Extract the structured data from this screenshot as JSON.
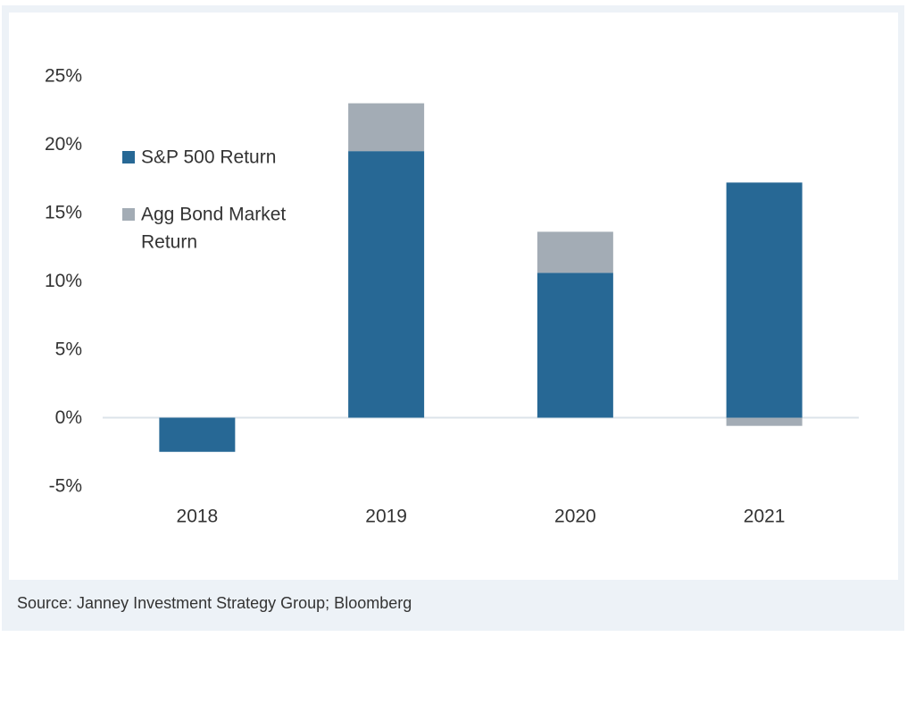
{
  "chart_data": {
    "type": "bar",
    "stacked": true,
    "title": "",
    "xlabel": "",
    "ylabel": "",
    "categories": [
      "2018",
      "2019",
      "2020",
      "2021"
    ],
    "series": [
      {
        "name": "S&P 500 Return",
        "color": "#276895",
        "values": [
          -2.5,
          19.5,
          10.6,
          17.2
        ]
      },
      {
        "name": "Agg Bond Market Return",
        "color": "#a3acb5",
        "values": [
          0.0,
          3.5,
          3.0,
          -0.6
        ]
      }
    ],
    "ylim": [
      -5,
      25
    ],
    "yticks": [
      -5,
      0,
      5,
      10,
      15,
      20,
      25
    ],
    "ytick_labels": [
      "-5%",
      "0%",
      "5%",
      "10%",
      "15%",
      "20%",
      "25%"
    ],
    "legend": {
      "placement": "top-left, inside plot",
      "entries": [
        {
          "lines": [
            "S&P 500 Return"
          ],
          "color": "#276895"
        },
        {
          "lines": [
            "Agg Bond Market",
            "Return"
          ],
          "color": "#a3acb5"
        }
      ]
    },
    "grid": false,
    "zero_line_color": "#dce3ea"
  },
  "source": "Source: Janney Investment Strategy Group; Bloomberg"
}
